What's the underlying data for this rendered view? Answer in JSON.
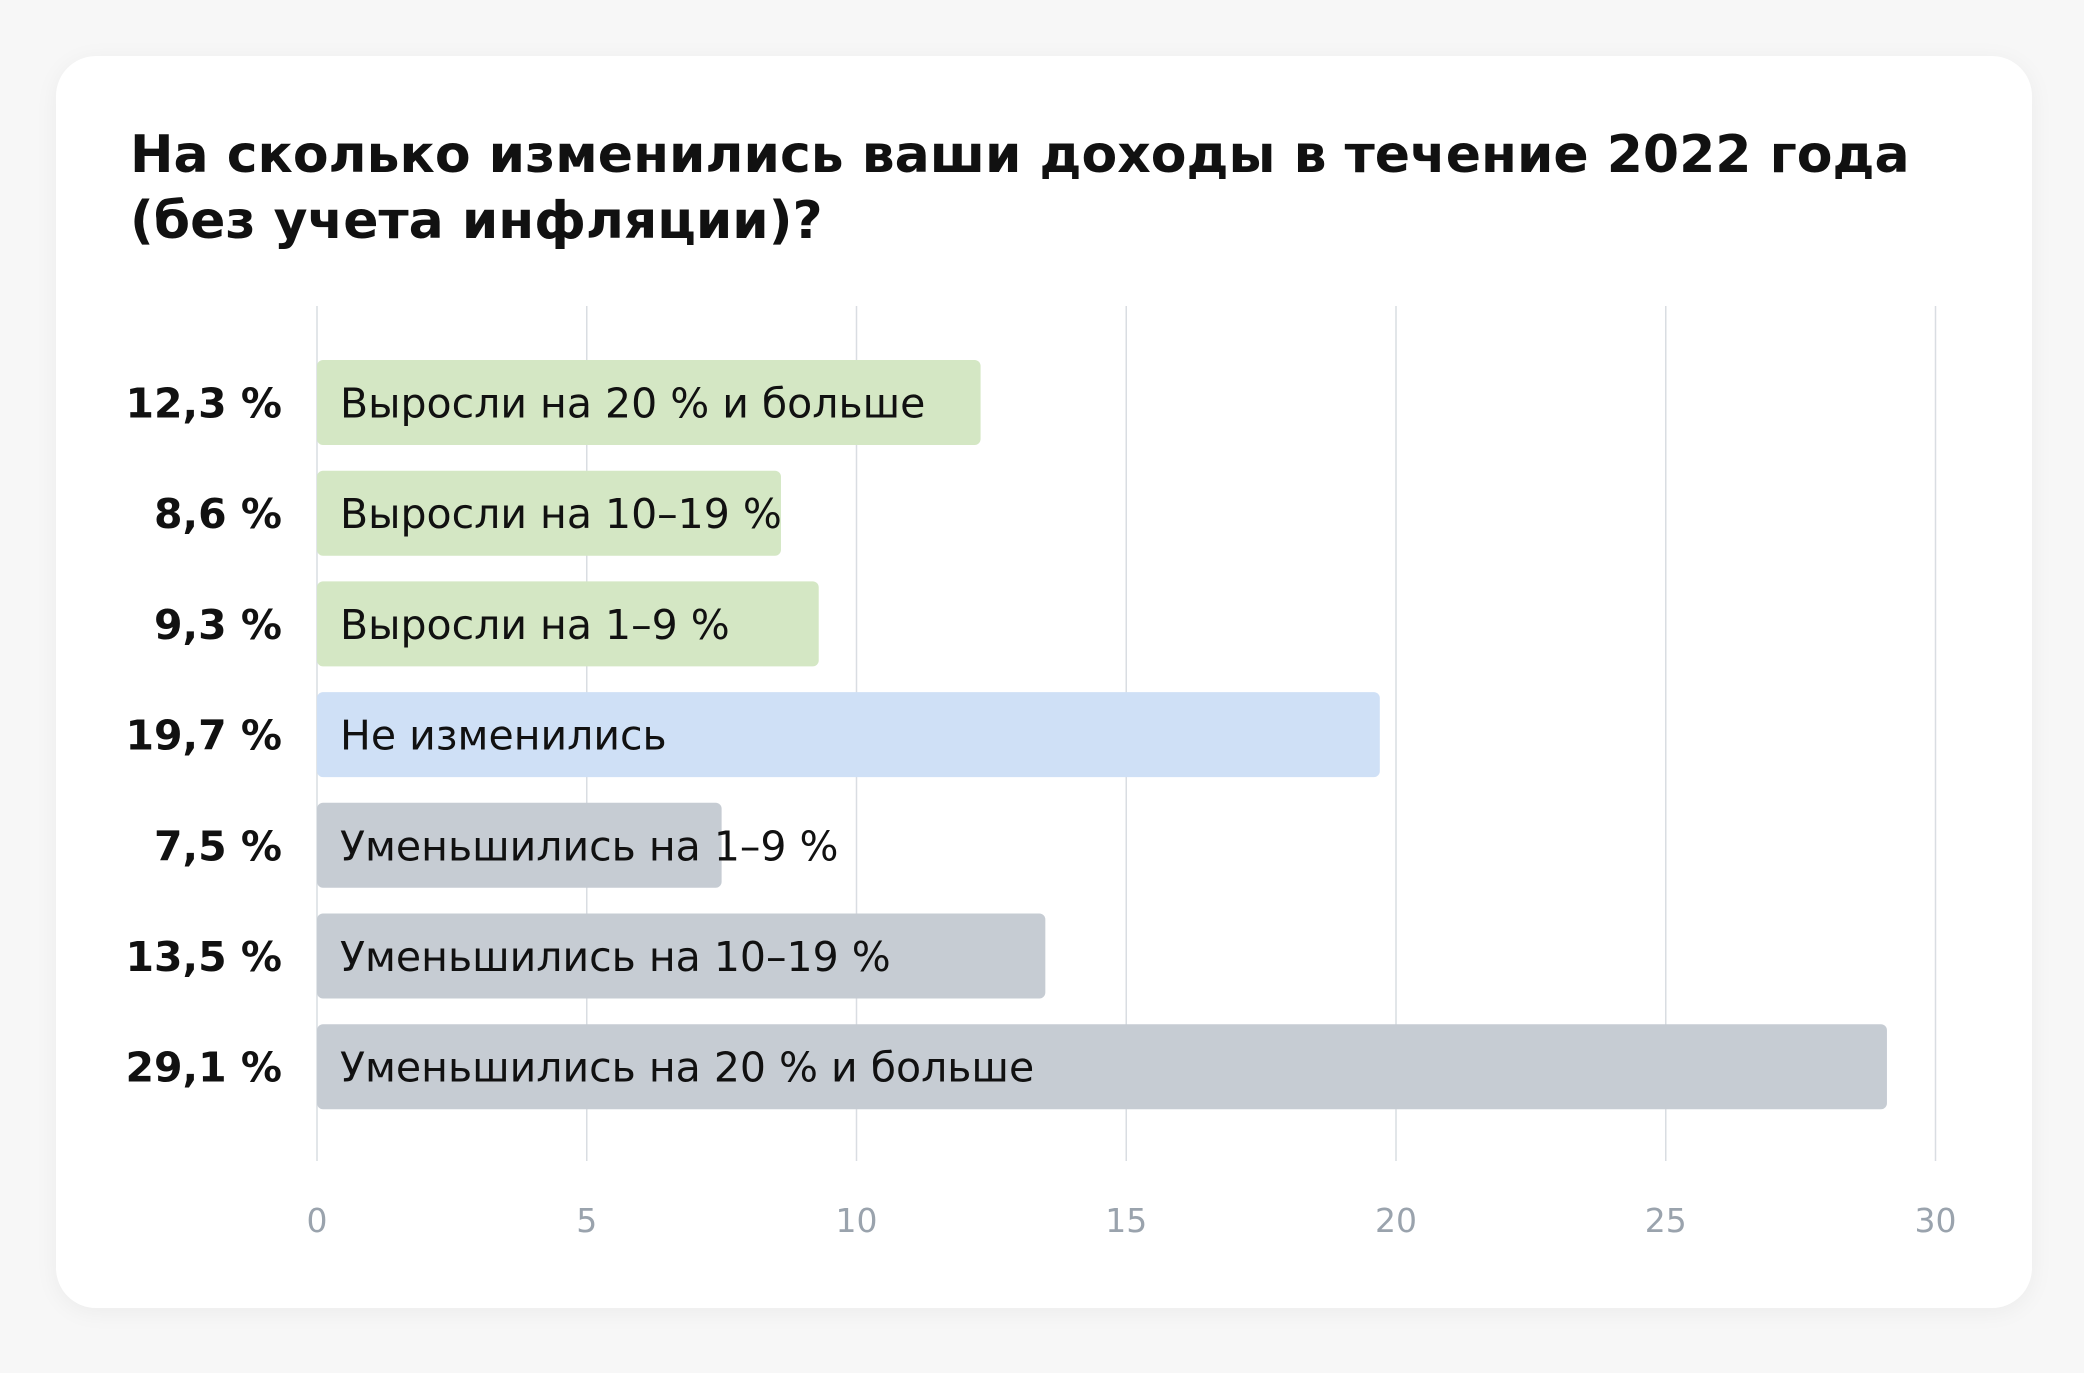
{
  "chart_data": {
    "type": "bar",
    "orientation": "horizontal",
    "title_lines": [
      "На сколько изменились ваши доходы в течение 2022 года",
      "(без учета инфляции)?"
    ],
    "categories": [
      "Выросли на 20 % и больше",
      "Выросли на 10–19 %",
      "Выросли на 1–9 %",
      "Не изменились",
      "Уменьшились на 1–9 %",
      "Уменьшились на 10–19 %",
      "Уменьшились на 20 % и больше"
    ],
    "values": [
      12.3,
      8.6,
      9.3,
      19.7,
      7.5,
      13.5,
      29.1
    ],
    "value_labels": [
      "12,3 %",
      "8,6 %",
      "9,3 %",
      "19,7 %",
      "7,5 %",
      "13,5 %",
      "29,1 %"
    ],
    "colors": [
      "#d4e7c4",
      "#d4e7c4",
      "#d4e7c4",
      "#cfe0f6",
      "#c6ccd3",
      "#c6ccd3",
      "#c6ccd3"
    ],
    "xlim": [
      0,
      30
    ],
    "xticks": [
      0,
      5,
      10,
      15,
      20,
      25,
      30
    ],
    "xtick_labels": [
      "0",
      "5",
      "10",
      "15",
      "20",
      "25",
      "30"
    ],
    "grid": "vertical",
    "legend": "none"
  }
}
